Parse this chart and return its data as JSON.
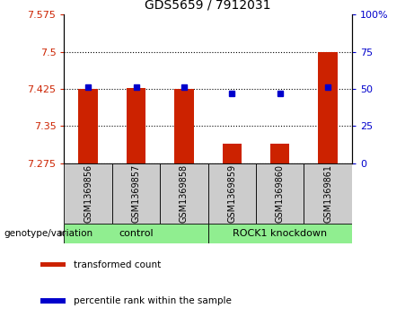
{
  "title": "GDS5659 / 7912031",
  "samples": [
    "GSM1369856",
    "GSM1369857",
    "GSM1369858",
    "GSM1369859",
    "GSM1369860",
    "GSM1369861"
  ],
  "bar_values": [
    7.425,
    7.426,
    7.425,
    7.314,
    7.314,
    7.5
  ],
  "percentile_values": [
    51,
    51,
    51,
    47,
    47,
    51
  ],
  "ylim_left": [
    7.275,
    7.575
  ],
  "ylim_right": [
    0,
    100
  ],
  "yticks_left": [
    7.275,
    7.35,
    7.425,
    7.5,
    7.575
  ],
  "ytick_labels_left": [
    "7.275",
    "7.35",
    "7.425",
    "7.5",
    "7.575"
  ],
  "yticks_right": [
    0,
    25,
    50,
    75,
    100
  ],
  "ytick_labels_right": [
    "0",
    "25",
    "50",
    "75",
    "100%"
  ],
  "bar_color": "#cc2200",
  "dot_color": "#0000cc",
  "bar_bottom": 7.275,
  "groups": [
    {
      "label": "control",
      "samples": [
        0,
        1,
        2
      ],
      "color": "#90ee90"
    },
    {
      "label": "ROCK1 knockdown",
      "samples": [
        3,
        4,
        5
      ],
      "color": "#90ee90"
    }
  ],
  "group_label_prefix": "genotype/variation",
  "legend_items": [
    {
      "label": "transformed count",
      "color": "#cc2200"
    },
    {
      "label": "percentile rank within the sample",
      "color": "#0000cc"
    }
  ],
  "grid_color": "black",
  "sample_box_color": "#cccccc",
  "bar_width": 0.4,
  "title_fontsize": 10,
  "tick_fontsize": 8,
  "sample_fontsize": 7,
  "group_fontsize": 8,
  "legend_fontsize": 7.5
}
